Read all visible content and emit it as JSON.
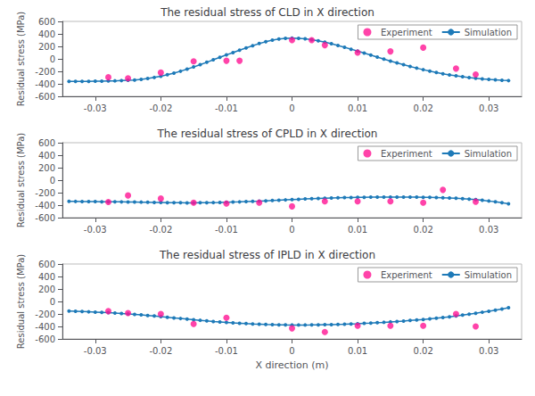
{
  "chart_data": [
    {
      "type": "line",
      "title": "The residual stress of CLD in X direction",
      "ylabel": "Residual stress (MPa)",
      "xlim": [
        -0.035,
        0.035
      ],
      "xticks": [
        -0.03,
        -0.02,
        -0.01,
        0,
        0.01,
        0.02,
        0.03
      ],
      "ylim": [
        -600,
        600
      ],
      "yticks": [
        -600,
        -400,
        -200,
        0,
        200,
        400,
        600
      ],
      "grid": false,
      "legend": "upper right",
      "series": [
        {
          "name": "Experiment",
          "type": "scatter",
          "color": "#ff1493",
          "marker": "circle",
          "x": [
            -0.028,
            -0.025,
            -0.02,
            -0.015,
            -0.01,
            -0.008,
            0.0,
            0.003,
            0.005,
            0.01,
            0.015,
            0.02,
            0.025,
            0.028
          ],
          "values": [
            -295,
            -310,
            -220,
            -40,
            -30,
            -30,
            300,
            300,
            220,
            100,
            120,
            180,
            -155,
            -250
          ]
        },
        {
          "name": "Simulation",
          "type": "line",
          "color": "#1e7ab8",
          "marker": "circle",
          "x": [
            -0.034,
            -0.033,
            -0.032,
            -0.031,
            -0.03,
            -0.029,
            -0.028,
            -0.027,
            -0.026,
            -0.025,
            -0.024,
            -0.023,
            -0.022,
            -0.021,
            -0.02,
            -0.019,
            -0.018,
            -0.017,
            -0.016,
            -0.015,
            -0.014,
            -0.013,
            -0.012,
            -0.011,
            -0.01,
            -0.009,
            -0.008,
            -0.007,
            -0.006,
            -0.005,
            -0.004,
            -0.003,
            -0.002,
            -0.001,
            0.0,
            0.001,
            0.002,
            0.003,
            0.004,
            0.005,
            0.006,
            0.007,
            0.008,
            0.009,
            0.01,
            0.011,
            0.012,
            0.013,
            0.014,
            0.015,
            0.016,
            0.017,
            0.018,
            0.019,
            0.02,
            0.021,
            0.022,
            0.023,
            0.024,
            0.025,
            0.026,
            0.027,
            0.028,
            0.029,
            0.03,
            0.031,
            0.032,
            0.033
          ],
          "values": [
            -360,
            -360,
            -360,
            -360,
            -358,
            -356,
            -354,
            -352,
            -348,
            -344,
            -340,
            -330,
            -315,
            -298,
            -278,
            -255,
            -228,
            -198,
            -165,
            -130,
            -93,
            -55,
            -15,
            25,
            65,
            100,
            140,
            175,
            210,
            245,
            275,
            300,
            318,
            328,
            332,
            330,
            322,
            308,
            290,
            268,
            242,
            214,
            185,
            155,
            124,
            92,
            60,
            28,
            -4,
            -35,
            -65,
            -94,
            -122,
            -148,
            -173,
            -196,
            -218,
            -238,
            -256,
            -272,
            -287,
            -300,
            -312,
            -322,
            -330,
            -337,
            -343,
            -348
          ]
        }
      ]
    },
    {
      "type": "line",
      "title": "The residual stress of CPLD in X direction",
      "ylabel": "Residual stress (MPa)",
      "xlim": [
        -0.035,
        0.035
      ],
      "xticks": [
        -0.03,
        -0.02,
        -0.01,
        0,
        0.01,
        0.02,
        0.03
      ],
      "ylim": [
        -600,
        600
      ],
      "yticks": [
        -600,
        -400,
        -200,
        0,
        200,
        400,
        600
      ],
      "grid": false,
      "legend": "upper right",
      "series": [
        {
          "name": "Experiment",
          "type": "scatter",
          "color": "#ff1493",
          "marker": "circle",
          "x": [
            -0.028,
            -0.025,
            -0.02,
            -0.015,
            -0.01,
            -0.005,
            0.0,
            0.005,
            0.01,
            0.015,
            0.02,
            0.023,
            0.028
          ],
          "values": [
            -350,
            -245,
            -295,
            -360,
            -375,
            -360,
            -420,
            -340,
            -340,
            -340,
            -360,
            -155,
            -345
          ]
        },
        {
          "name": "Simulation",
          "type": "line",
          "color": "#1e7ab8",
          "marker": "circle",
          "x": [
            -0.034,
            -0.033,
            -0.032,
            -0.031,
            -0.03,
            -0.029,
            -0.028,
            -0.027,
            -0.026,
            -0.025,
            -0.024,
            -0.023,
            -0.022,
            -0.021,
            -0.02,
            -0.019,
            -0.018,
            -0.017,
            -0.016,
            -0.015,
            -0.014,
            -0.013,
            -0.012,
            -0.011,
            -0.01,
            -0.009,
            -0.008,
            -0.007,
            -0.006,
            -0.005,
            -0.004,
            -0.003,
            -0.002,
            -0.001,
            0.0,
            0.001,
            0.002,
            0.003,
            0.004,
            0.005,
            0.006,
            0.007,
            0.008,
            0.009,
            0.01,
            0.011,
            0.012,
            0.013,
            0.014,
            0.015,
            0.016,
            0.017,
            0.018,
            0.019,
            0.02,
            0.021,
            0.022,
            0.023,
            0.024,
            0.025,
            0.026,
            0.027,
            0.028,
            0.029,
            0.03,
            0.031,
            0.032,
            0.033
          ],
          "values": [
            -340,
            -341,
            -342,
            -343,
            -344,
            -345,
            -346,
            -347,
            -348,
            -349,
            -350,
            -352,
            -354,
            -356,
            -358,
            -360,
            -361,
            -362,
            -363,
            -363,
            -362,
            -361,
            -359,
            -357,
            -354,
            -351,
            -348,
            -344,
            -340,
            -336,
            -331,
            -326,
            -321,
            -316,
            -311,
            -306,
            -301,
            -297,
            -293,
            -289,
            -286,
            -283,
            -280,
            -278,
            -276,
            -274,
            -272,
            -271,
            -270,
            -270,
            -270,
            -270,
            -271,
            -272,
            -274,
            -276,
            -278,
            -281,
            -285,
            -290,
            -296,
            -303,
            -312,
            -322,
            -334,
            -347,
            -362,
            -378
          ]
        }
      ]
    },
    {
      "type": "line",
      "title": "The residual stress of IPLD in X direction",
      "xlabel": "X direction (m)",
      "ylabel": "Residual stress (MPa)",
      "xlim": [
        -0.035,
        0.035
      ],
      "xticks": [
        -0.03,
        -0.02,
        -0.01,
        0,
        0.01,
        0.02,
        0.03
      ],
      "ylim": [
        -600,
        600
      ],
      "yticks": [
        -600,
        -400,
        -200,
        0,
        200,
        400,
        600
      ],
      "grid": false,
      "legend": "upper right",
      "series": [
        {
          "name": "Experiment",
          "type": "scatter",
          "color": "#ff1493",
          "marker": "circle",
          "x": [
            -0.028,
            -0.025,
            -0.02,
            -0.015,
            -0.01,
            0.0,
            0.005,
            0.01,
            0.015,
            0.02,
            0.025,
            0.028
          ],
          "values": [
            -155,
            -185,
            -200,
            -360,
            -260,
            -430,
            -490,
            -390,
            -390,
            -390,
            -200,
            -400
          ]
        },
        {
          "name": "Simulation",
          "type": "line",
          "color": "#1e7ab8",
          "marker": "circle",
          "x": [
            -0.034,
            -0.033,
            -0.032,
            -0.031,
            -0.03,
            -0.029,
            -0.028,
            -0.027,
            -0.026,
            -0.025,
            -0.024,
            -0.023,
            -0.022,
            -0.021,
            -0.02,
            -0.019,
            -0.018,
            -0.017,
            -0.016,
            -0.015,
            -0.014,
            -0.013,
            -0.012,
            -0.011,
            -0.01,
            -0.009,
            -0.008,
            -0.007,
            -0.006,
            -0.005,
            -0.004,
            -0.003,
            -0.002,
            -0.001,
            0.0,
            0.001,
            0.002,
            0.003,
            0.004,
            0.005,
            0.006,
            0.007,
            0.008,
            0.009,
            0.01,
            0.011,
            0.012,
            0.013,
            0.014,
            0.015,
            0.016,
            0.017,
            0.018,
            0.019,
            0.02,
            0.021,
            0.022,
            0.023,
            0.024,
            0.025,
            0.026,
            0.027,
            0.028,
            0.029,
            0.03,
            0.031,
            0.032,
            0.033
          ],
          "values": [
            -155,
            -158,
            -162,
            -166,
            -170,
            -175,
            -180,
            -186,
            -192,
            -199,
            -207,
            -215,
            -224,
            -233,
            -243,
            -253,
            -263,
            -273,
            -283,
            -293,
            -302,
            -311,
            -320,
            -328,
            -336,
            -343,
            -349,
            -355,
            -360,
            -364,
            -368,
            -371,
            -374,
            -376,
            -377,
            -377,
            -377,
            -376,
            -374,
            -372,
            -370,
            -367,
            -364,
            -360,
            -356,
            -351,
            -346,
            -340,
            -334,
            -327,
            -320,
            -313,
            -305,
            -297,
            -288,
            -278,
            -268,
            -257,
            -245,
            -232,
            -218,
            -204,
            -189,
            -173,
            -156,
            -138,
            -120,
            -100
          ]
        }
      ]
    }
  ]
}
